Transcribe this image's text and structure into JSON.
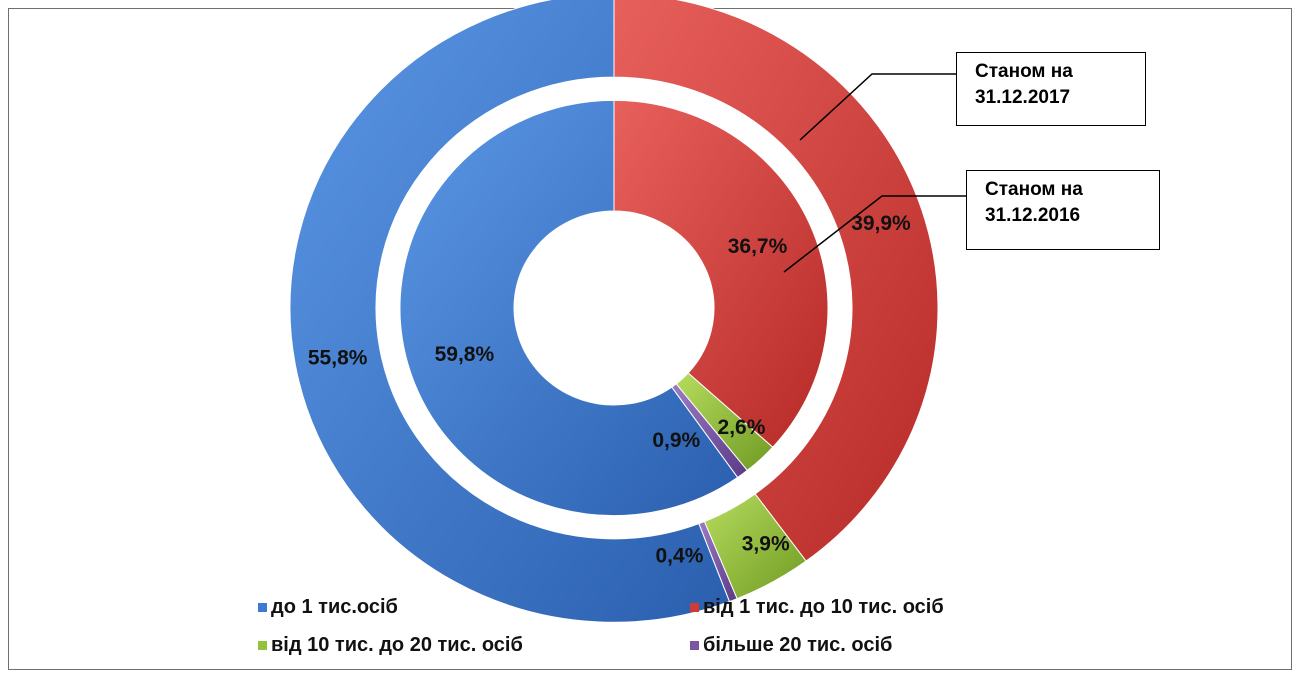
{
  "chart_data": {
    "type": "pie",
    "subtype": "doughnut",
    "categories": [
      "до 1 тис.осіб",
      "від 1 тис. до 10 тис. осіб",
      "від 10 тис. до 20 тис. осіб",
      "більше 20 тис. осіб"
    ],
    "colors": [
      "#3d7ad1",
      "#d23a37",
      "#94c23c",
      "#7a55a3"
    ],
    "series": [
      {
        "name": "Станом на 31.12.2017",
        "ring": "outer",
        "values": [
          55.8,
          39.9,
          3.9,
          0.4
        ],
        "labels": [
          "55,8%",
          "39,9%",
          "3,9%",
          "0,4%"
        ]
      },
      {
        "name": "Станом на 31.12.2016",
        "ring": "inner",
        "values": [
          59.8,
          36.7,
          2.6,
          0.9
        ],
        "labels": [
          "59,8%",
          "36,7%",
          "2,6%",
          "0,9%"
        ]
      }
    ],
    "callouts": [
      "Станом на 31.12.2017",
      "Станом на 31.12.2016"
    ],
    "legend_position": "bottom"
  }
}
